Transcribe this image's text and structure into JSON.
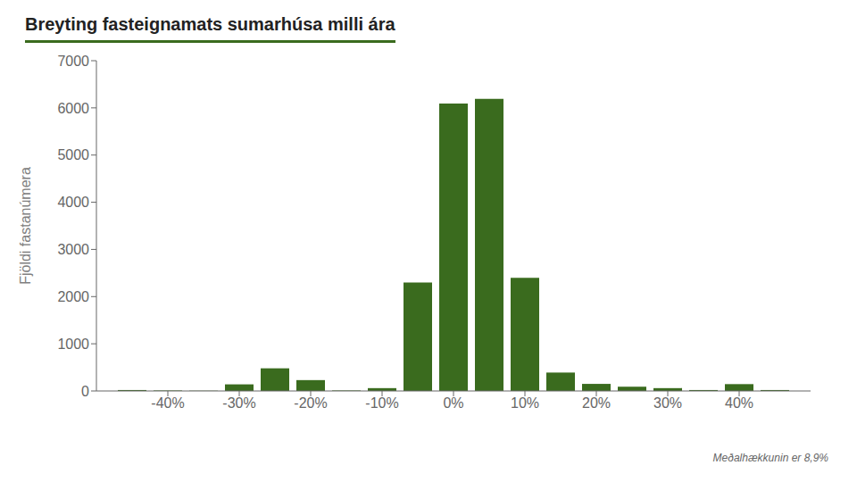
{
  "chart_data": {
    "type": "bar",
    "title": "Breyting fasteignamats sumarhúsa milli ára",
    "ylabel": "Fjöldi fastanúmera",
    "annotation": "Meðalhækkunin er 8,9%",
    "x": [
      -45,
      -40,
      -35,
      -30,
      -25,
      -20,
      -15,
      -10,
      -5,
      0,
      5,
      10,
      15,
      20,
      25,
      30,
      35,
      40,
      45
    ],
    "values": [
      20,
      10,
      5,
      140,
      480,
      230,
      10,
      60,
      2300,
      6090,
      6190,
      2400,
      390,
      150,
      90,
      60,
      20,
      145,
      20
    ],
    "color": "#3a6b1e",
    "xlim": [
      -50,
      50
    ],
    "ylim": [
      0,
      7000
    ],
    "xticks": [
      {
        "value": -40,
        "label": "-40%"
      },
      {
        "value": -30,
        "label": "-30%"
      },
      {
        "value": -20,
        "label": "-20%"
      },
      {
        "value": -10,
        "label": "-10%"
      },
      {
        "value": 0,
        "label": "0%"
      },
      {
        "value": 10,
        "label": "10%"
      },
      {
        "value": 20,
        "label": "20%"
      },
      {
        "value": 30,
        "label": "30%"
      },
      {
        "value": 40,
        "label": "40%"
      }
    ],
    "yticks": [
      0,
      1000,
      2000,
      3000,
      4000,
      5000,
      6000,
      7000
    ],
    "grid": false
  }
}
